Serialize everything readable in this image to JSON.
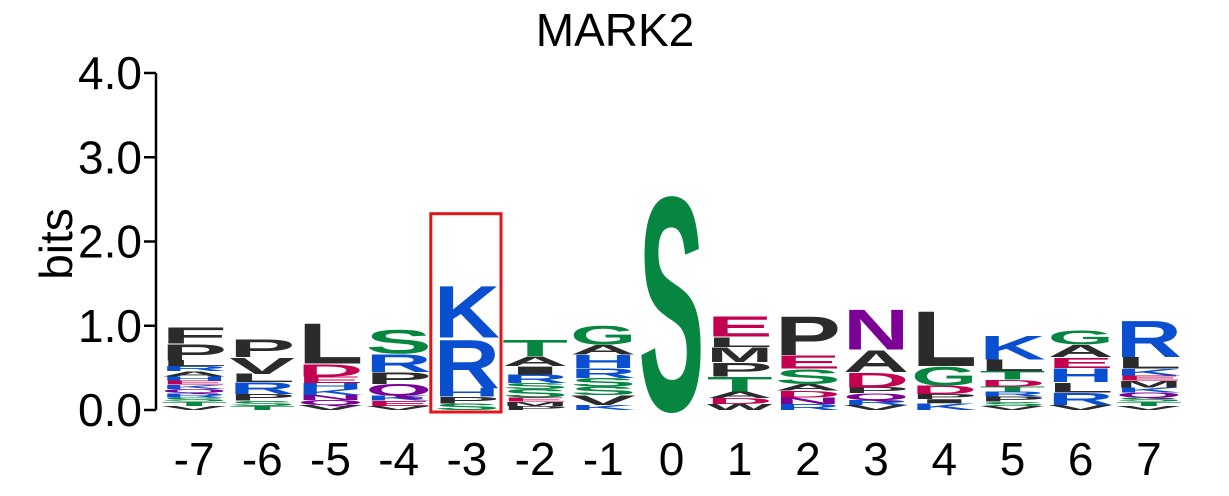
{
  "chart_data": {
    "type": "sequence-logo",
    "title": "MARK2",
    "ylabel": "bits",
    "ylim": [
      0,
      4
    ],
    "yticks": [
      {
        "value": 0,
        "label": "0.0"
      },
      {
        "value": 1,
        "label": "1.0"
      },
      {
        "value": 2,
        "label": "2.0"
      },
      {
        "value": 3,
        "label": "3.0"
      },
      {
        "value": 4,
        "label": "4.0"
      }
    ],
    "colors": {
      "black": "#2b2b2b",
      "blue": "#0a4fcf",
      "green": "#078641",
      "red": "#c40050",
      "purple": "#7b0096"
    },
    "highlight": {
      "position": "-3",
      "top": 2.33,
      "color": "#e0161b"
    },
    "positions": [
      {
        "label": "-7",
        "letters": [
          {
            "char": "V",
            "bits": 0.05,
            "color": "black"
          },
          {
            "char": "T",
            "bits": 0.05,
            "color": "green"
          },
          {
            "char": "S",
            "bits": 0.05,
            "color": "green"
          },
          {
            "char": "R",
            "bits": 0.05,
            "color": "blue"
          },
          {
            "char": "Q",
            "bits": 0.05,
            "color": "purple"
          },
          {
            "char": "K",
            "bits": 0.05,
            "color": "blue"
          },
          {
            "char": "E",
            "bits": 0.05,
            "color": "red"
          },
          {
            "char": "H",
            "bits": 0.05,
            "color": "blue"
          },
          {
            "char": "A",
            "bits": 0.06,
            "color": "black"
          },
          {
            "char": "R",
            "bits": 0.06,
            "color": "blue"
          },
          {
            "char": "L",
            "bits": 0.07,
            "color": "black"
          },
          {
            "char": "P",
            "bits": 0.2,
            "color": "black"
          },
          {
            "char": "F",
            "bits": 0.2,
            "color": "black"
          }
        ]
      },
      {
        "label": "-6",
        "letters": [
          {
            "char": "T",
            "bits": 0.05,
            "color": "green"
          },
          {
            "char": "S",
            "bits": 0.06,
            "color": "green"
          },
          {
            "char": "P",
            "bits": 0.08,
            "color": "black"
          },
          {
            "char": "R",
            "bits": 0.14,
            "color": "blue"
          },
          {
            "char": "L",
            "bits": 0.1,
            "color": "black"
          },
          {
            "char": "V",
            "bits": 0.2,
            "color": "black"
          },
          {
            "char": "P",
            "bits": 0.22,
            "color": "black"
          }
        ]
      },
      {
        "label": "-5",
        "letters": [
          {
            "char": "V",
            "bits": 0.06,
            "color": "black"
          },
          {
            "char": "Q",
            "bits": 0.06,
            "color": "purple"
          },
          {
            "char": "N",
            "bits": 0.06,
            "color": "purple"
          },
          {
            "char": "K",
            "bits": 0.07,
            "color": "blue"
          },
          {
            "char": "H",
            "bits": 0.07,
            "color": "blue"
          },
          {
            "char": "E",
            "bits": 0.08,
            "color": "red"
          },
          {
            "char": "D",
            "bits": 0.15,
            "color": "red"
          },
          {
            "char": "L",
            "bits": 0.5,
            "color": "black"
          }
        ]
      },
      {
        "label": "-4",
        "letters": [
          {
            "char": "V",
            "bits": 0.05,
            "color": "black"
          },
          {
            "char": "E",
            "bits": 0.06,
            "color": "red"
          },
          {
            "char": "K",
            "bits": 0.06,
            "color": "blue"
          },
          {
            "char": "Q",
            "bits": 0.14,
            "color": "purple"
          },
          {
            "char": "P",
            "bits": 0.14,
            "color": "black"
          },
          {
            "char": "R",
            "bits": 0.22,
            "color": "blue"
          },
          {
            "char": "S",
            "bits": 0.3,
            "color": "green"
          }
        ]
      },
      {
        "label": "-3",
        "letters": [
          {
            "char": "S",
            "bits": 0.08,
            "color": "green"
          },
          {
            "char": "P",
            "bits": 0.08,
            "color": "black"
          },
          {
            "char": "H",
            "bits": 0.1,
            "color": "blue"
          },
          {
            "char": "R",
            "bits": 0.6,
            "color": "blue"
          },
          {
            "char": "K",
            "bits": 0.64,
            "color": "blue"
          }
        ]
      },
      {
        "label": "-2",
        "letters": [
          {
            "char": "P",
            "bits": 0.05,
            "color": "black"
          },
          {
            "char": "M",
            "bits": 0.05,
            "color": "black"
          },
          {
            "char": "E",
            "bits": 0.05,
            "color": "red"
          },
          {
            "char": "S",
            "bits": 0.1,
            "color": "green"
          },
          {
            "char": "S",
            "bits": 0.07,
            "color": "green"
          },
          {
            "char": "R",
            "bits": 0.1,
            "color": "blue"
          },
          {
            "char": "I",
            "bits": 0.1,
            "color": "black"
          },
          {
            "char": "A",
            "bits": 0.12,
            "color": "black"
          },
          {
            "char": "T",
            "bits": 0.2,
            "color": "green"
          }
        ]
      },
      {
        "label": "-1",
        "letters": [
          {
            "char": "K",
            "bits": 0.06,
            "color": "blue"
          },
          {
            "char": "V",
            "bits": 0.12,
            "color": "black"
          },
          {
            "char": "S",
            "bits": 0.1,
            "color": "green"
          },
          {
            "char": "S",
            "bits": 0.1,
            "color": "green"
          },
          {
            "char": "R",
            "bits": 0.12,
            "color": "blue"
          },
          {
            "char": "H",
            "bits": 0.16,
            "color": "blue"
          },
          {
            "char": "A",
            "bits": 0.12,
            "color": "black"
          },
          {
            "char": "G",
            "bits": 0.23,
            "color": "green"
          }
        ]
      },
      {
        "label": "0",
        "letters": [
          {
            "char": "S",
            "bits": 2.65,
            "color": "green"
          }
        ]
      },
      {
        "label": "1",
        "letters": [
          {
            "char": "W",
            "bits": 0.07,
            "color": "black"
          },
          {
            "char": "D",
            "bits": 0.07,
            "color": "red"
          },
          {
            "char": "A",
            "bits": 0.08,
            "color": "black"
          },
          {
            "char": "T",
            "bits": 0.18,
            "color": "green"
          },
          {
            "char": "P",
            "bits": 0.17,
            "color": "black"
          },
          {
            "char": "M",
            "bits": 0.18,
            "color": "black"
          },
          {
            "char": "L",
            "bits": 0.12,
            "color": "black"
          },
          {
            "char": "E",
            "bits": 0.25,
            "color": "red"
          }
        ]
      },
      {
        "label": "2",
        "letters": [
          {
            "char": "R",
            "bits": 0.07,
            "color": "blue"
          },
          {
            "char": "N",
            "bits": 0.08,
            "color": "purple"
          },
          {
            "char": "D",
            "bits": 0.08,
            "color": "red"
          },
          {
            "char": "A",
            "bits": 0.08,
            "color": "black"
          },
          {
            "char": "S",
            "bits": 0.18,
            "color": "green"
          },
          {
            "char": "E",
            "bits": 0.16,
            "color": "red"
          },
          {
            "char": "P",
            "bits": 0.48,
            "color": "black"
          }
        ]
      },
      {
        "label": "3",
        "letters": [
          {
            "char": "V",
            "bits": 0.06,
            "color": "black"
          },
          {
            "char": "R",
            "bits": 0.06,
            "color": "blue"
          },
          {
            "char": "Q",
            "bits": 0.08,
            "color": "purple"
          },
          {
            "char": "P",
            "bits": 0.07,
            "color": "black"
          },
          {
            "char": "D",
            "bits": 0.18,
            "color": "red"
          },
          {
            "char": "A",
            "bits": 0.27,
            "color": "black"
          },
          {
            "char": "N",
            "bits": 0.5,
            "color": "purple"
          }
        ]
      },
      {
        "label": "4",
        "letters": [
          {
            "char": "K",
            "bits": 0.08,
            "color": "blue"
          },
          {
            "char": "I",
            "bits": 0.05,
            "color": "black"
          },
          {
            "char": "P",
            "bits": 0.06,
            "color": "black"
          },
          {
            "char": "D",
            "bits": 0.1,
            "color": "red"
          },
          {
            "char": "G",
            "bits": 0.23,
            "color": "green"
          },
          {
            "char": "L",
            "bits": 0.68,
            "color": "black"
          }
        ]
      },
      {
        "label": "5",
        "letters": [
          {
            "char": "V",
            "bits": 0.05,
            "color": "black"
          },
          {
            "char": "S",
            "bits": 0.05,
            "color": "green"
          },
          {
            "char": "P",
            "bits": 0.06,
            "color": "black"
          },
          {
            "char": "R",
            "bits": 0.06,
            "color": "blue"
          },
          {
            "char": "T",
            "bits": 0.06,
            "color": "green"
          },
          {
            "char": "D",
            "bits": 0.08,
            "color": "red"
          },
          {
            "char": "T",
            "bits": 0.1,
            "color": "green"
          },
          {
            "char": "L",
            "bits": 0.14,
            "color": "black"
          },
          {
            "char": "K",
            "bits": 0.3,
            "color": "blue"
          }
        ]
      },
      {
        "label": "6",
        "letters": [
          {
            "char": "V",
            "bits": 0.06,
            "color": "black"
          },
          {
            "char": "R",
            "bits": 0.15,
            "color": "blue"
          },
          {
            "char": "L",
            "bits": 0.12,
            "color": "black"
          },
          {
            "char": "H",
            "bits": 0.17,
            "color": "blue"
          },
          {
            "char": "E",
            "bits": 0.13,
            "color": "red"
          },
          {
            "char": "A",
            "bits": 0.15,
            "color": "black"
          },
          {
            "char": "G",
            "bits": 0.18,
            "color": "green"
          }
        ]
      },
      {
        "label": "7",
        "letters": [
          {
            "char": "V",
            "bits": 0.05,
            "color": "black"
          },
          {
            "char": "T",
            "bits": 0.05,
            "color": "green"
          },
          {
            "char": "S",
            "bits": 0.05,
            "color": "green"
          },
          {
            "char": "Q",
            "bits": 0.06,
            "color": "purple"
          },
          {
            "char": "K",
            "bits": 0.06,
            "color": "blue"
          },
          {
            "char": "M",
            "bits": 0.08,
            "color": "black"
          },
          {
            "char": "E",
            "bits": 0.06,
            "color": "red"
          },
          {
            "char": "K",
            "bits": 0.08,
            "color": "blue"
          },
          {
            "char": "L",
            "bits": 0.14,
            "color": "black"
          },
          {
            "char": "R",
            "bits": 0.45,
            "color": "blue"
          }
        ]
      }
    ]
  }
}
